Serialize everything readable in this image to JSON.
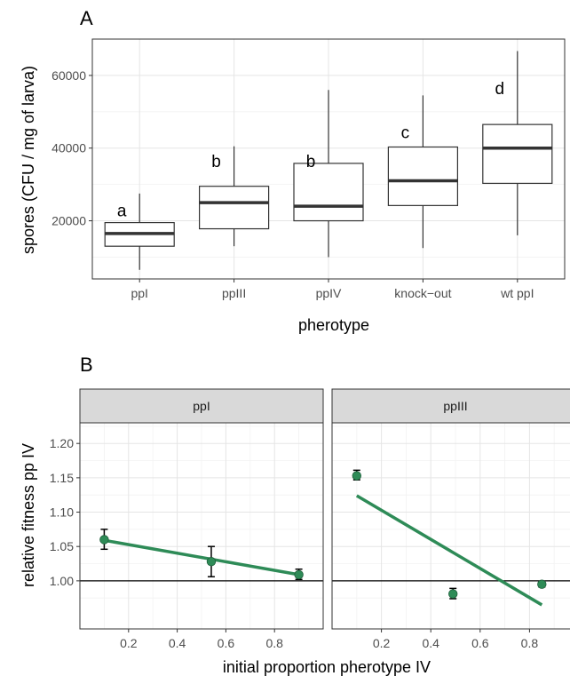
{
  "chart_data": [
    {
      "type": "box",
      "panel_label": "A",
      "title": "",
      "xlabel": "pherotype",
      "ylabel": "spores (CFU / mg of larva)",
      "ylim": [
        4000,
        70000
      ],
      "y_ticks": [
        "20000",
        "40000",
        "60000"
      ],
      "y_tick_values": [
        20000,
        40000,
        60000
      ],
      "grid": true,
      "categories": [
        "ppI",
        "ppIII",
        "ppIV",
        "knock−out",
        "wt ppI"
      ],
      "boxes": [
        {
          "category": "ppI",
          "whisker_low": 6500,
          "q1": 13000,
          "median": 16500,
          "q3": 19500,
          "whisker_high": 27500,
          "letter": "a"
        },
        {
          "category": "ppIII",
          "whisker_low": 13000,
          "q1": 17800,
          "median": 25000,
          "q3": 29500,
          "whisker_high": 40500,
          "letter": "b"
        },
        {
          "category": "ppIV",
          "whisker_low": 10000,
          "q1": 20000,
          "median": 24000,
          "q3": 35800,
          "whisker_high": 56000,
          "letter": "b"
        },
        {
          "category": "knock−out",
          "whisker_low": 12500,
          "q1": 24200,
          "median": 31000,
          "q3": 40300,
          "whisker_high": 54500,
          "letter": "c"
        },
        {
          "category": "wt ppI",
          "whisker_low": 16000,
          "q1": 30300,
          "median": 40000,
          "q3": 46500,
          "whisker_high": 66700,
          "letter": "d"
        }
      ],
      "letter_y": [
        23000,
        36500,
        36500,
        44500,
        56500
      ]
    },
    {
      "type": "scatter",
      "panel_label": "B",
      "title": "",
      "xlabel": "initial proportion pherotype IV",
      "ylabel": "relative fitness pp IV",
      "xlim": [
        0.0,
        1.0
      ],
      "ylim": [
        0.93,
        1.23
      ],
      "x_ticks": [
        "0.2",
        "0.4",
        "0.6",
        "0.8"
      ],
      "x_tick_values": [
        0.2,
        0.4,
        0.6,
        0.8
      ],
      "y_ticks": [
        "1.00",
        "1.05",
        "1.10",
        "1.15",
        "1.20"
      ],
      "y_tick_values": [
        1.0,
        1.05,
        1.1,
        1.15,
        1.2
      ],
      "reference_line_y": 1.0,
      "point_color": "#2e8b57",
      "line_color": "#2e8b57",
      "facets": [
        {
          "strip": "ppI",
          "points": [
            {
              "x": 0.1,
              "y": 1.06,
              "err_low": 1.046,
              "err_high": 1.075
            },
            {
              "x": 0.54,
              "y": 1.028,
              "err_low": 1.006,
              "err_high": 1.05
            },
            {
              "x": 0.9,
              "y": 1.009,
              "err_low": 1.002,
              "err_high": 1.017
            }
          ],
          "fit_line": [
            [
              0.1,
              1.059
            ],
            [
              0.9,
              1.009
            ]
          ]
        },
        {
          "strip": "ppIII",
          "points": [
            {
              "x": 0.1,
              "y": 1.153,
              "err_low": 1.147,
              "err_high": 1.161
            },
            {
              "x": 0.49,
              "y": 0.981,
              "err_low": 0.974,
              "err_high": 0.989
            },
            {
              "x": 0.85,
              "y": 0.995,
              "err_low": 0.991,
              "err_high": 0.998
            }
          ],
          "fit_line": [
            [
              0.1,
              1.124
            ],
            [
              0.85,
              0.965
            ]
          ]
        }
      ]
    }
  ]
}
